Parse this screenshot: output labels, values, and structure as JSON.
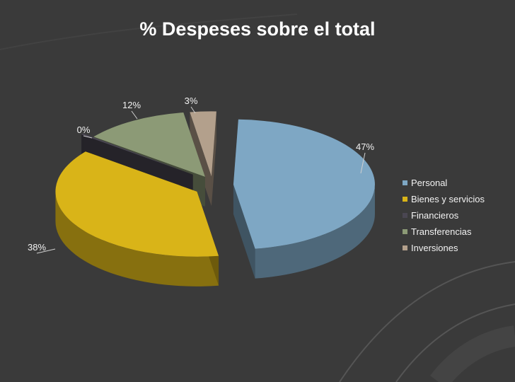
{
  "chart_data": {
    "type": "pie",
    "title": "% Despeses sobre el total",
    "categories": [
      "Personal",
      "Bienes y servicios",
      "Financieros",
      "Transferencias",
      "Inversiones"
    ],
    "values": [
      47,
      38,
      0,
      12,
      3
    ],
    "labels": [
      "47%",
      "38%",
      "0%",
      "12%",
      "3%"
    ],
    "colors": [
      "#7ea7c4",
      "#d9b418",
      "#4a4652",
      "#8c9a76",
      "#b3a08c"
    ],
    "legend_position": "right",
    "style": "3d-exploded"
  },
  "background": {
    "color": "#3a3a3a",
    "arc_color": "#4a4a4a"
  }
}
